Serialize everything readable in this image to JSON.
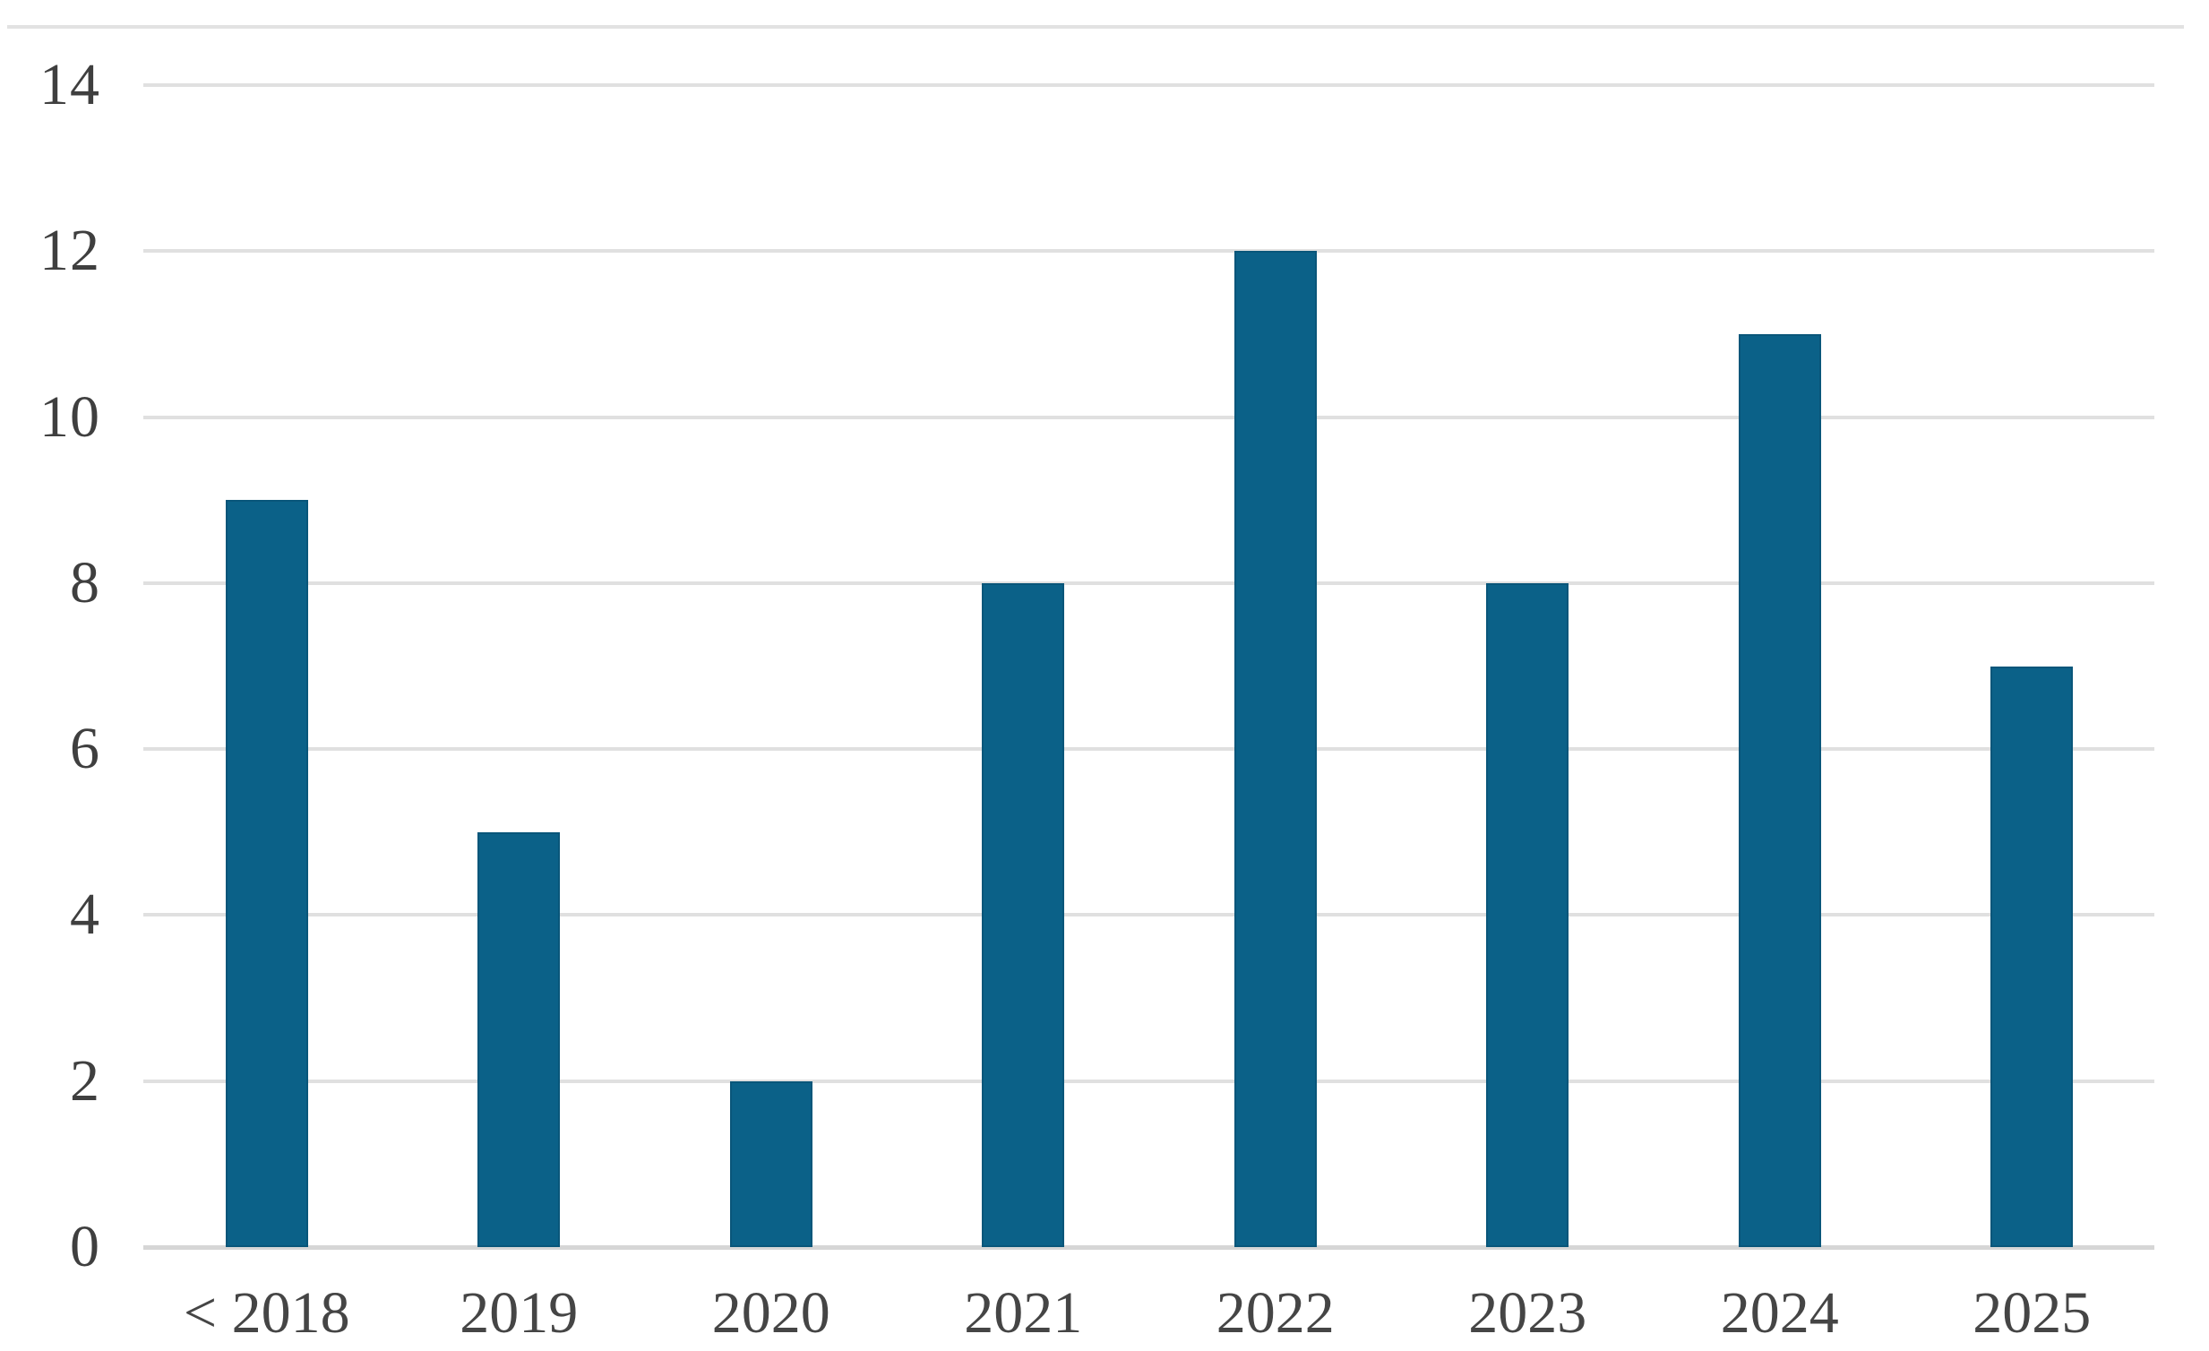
{
  "chart_data": {
    "type": "bar",
    "title": "",
    "xlabel": "",
    "ylabel": "",
    "categories": [
      "< 2018",
      "2019",
      "2020",
      "2021",
      "2022",
      "2023",
      "2024",
      "2025"
    ],
    "values": [
      9,
      5,
      2,
      8,
      12,
      8,
      11,
      7
    ],
    "ylim": [
      0,
      14
    ],
    "yticks": [
      0,
      2,
      4,
      6,
      8,
      10,
      12,
      14
    ],
    "grid": true,
    "legend_position": "none",
    "colors": {
      "bar_fill": "#0b6188",
      "bar_edge": "#09567a",
      "gridline": "#e0e0e0",
      "axis_line": "#d6d6d6",
      "tick_label": "#3f3f3f",
      "category_label": "#454545",
      "background": "#ffffff",
      "top_border": "#e2e2e2"
    }
  }
}
